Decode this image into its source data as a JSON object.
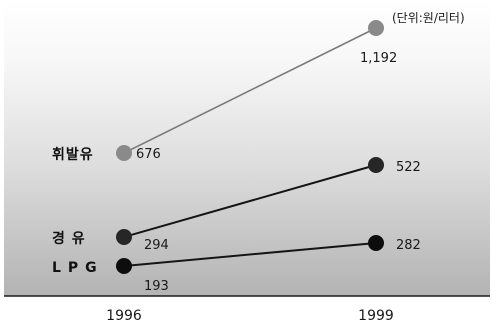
{
  "chart_data": {
    "type": "line",
    "title": "",
    "unit_note": "(단위:원/리터)",
    "xlabel": "",
    "ylabel": "",
    "categories": [
      "1996",
      "1999"
    ],
    "series": [
      {
        "name": "휘발유",
        "values": [
          676,
          1192
        ],
        "labels": [
          "676",
          "1,192"
        ],
        "color": "#8a8a8a"
      },
      {
        "name": "경  유",
        "values": [
          294,
          522
        ],
        "labels": [
          "294",
          "522"
        ],
        "color": "#262626"
      },
      {
        "name": "LPG",
        "values": [
          193,
          282
        ],
        "labels": [
          "193",
          "282"
        ],
        "color": "#0d0d0d"
      }
    ],
    "ylim": [
      0,
      1300
    ],
    "grid": false,
    "legend": "none"
  }
}
